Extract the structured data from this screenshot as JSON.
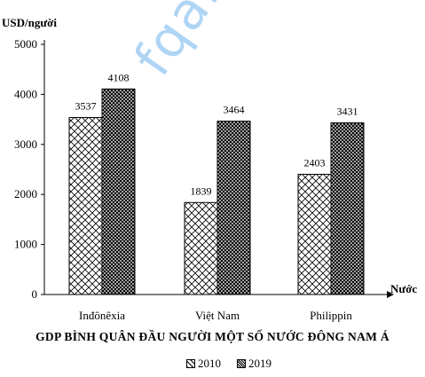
{
  "watermark": "fqa.",
  "chart_data": {
    "type": "bar",
    "title": "GDP BÌNH QUÂN ĐẦU NGƯỜI MỘT SỐ NƯỚC ĐÔNG NAM Á",
    "ylabel": "USD/người",
    "xlabel": "Nước",
    "categories": [
      "Inđônêxia",
      "Việt Nam",
      "Philippin"
    ],
    "series": [
      {
        "name": "2010",
        "values": [
          3537,
          1839,
          2403
        ],
        "pattern": "diagonal-cross-light"
      },
      {
        "name": "2019",
        "values": [
          4108,
          3464,
          3431
        ],
        "pattern": "dense-cross"
      }
    ],
    "yticks": [
      "0",
      "1000",
      "2000",
      "3000",
      "4000",
      "5000"
    ],
    "ylim": [
      0,
      5000
    ],
    "grid": false,
    "legend_position": "bottom"
  }
}
